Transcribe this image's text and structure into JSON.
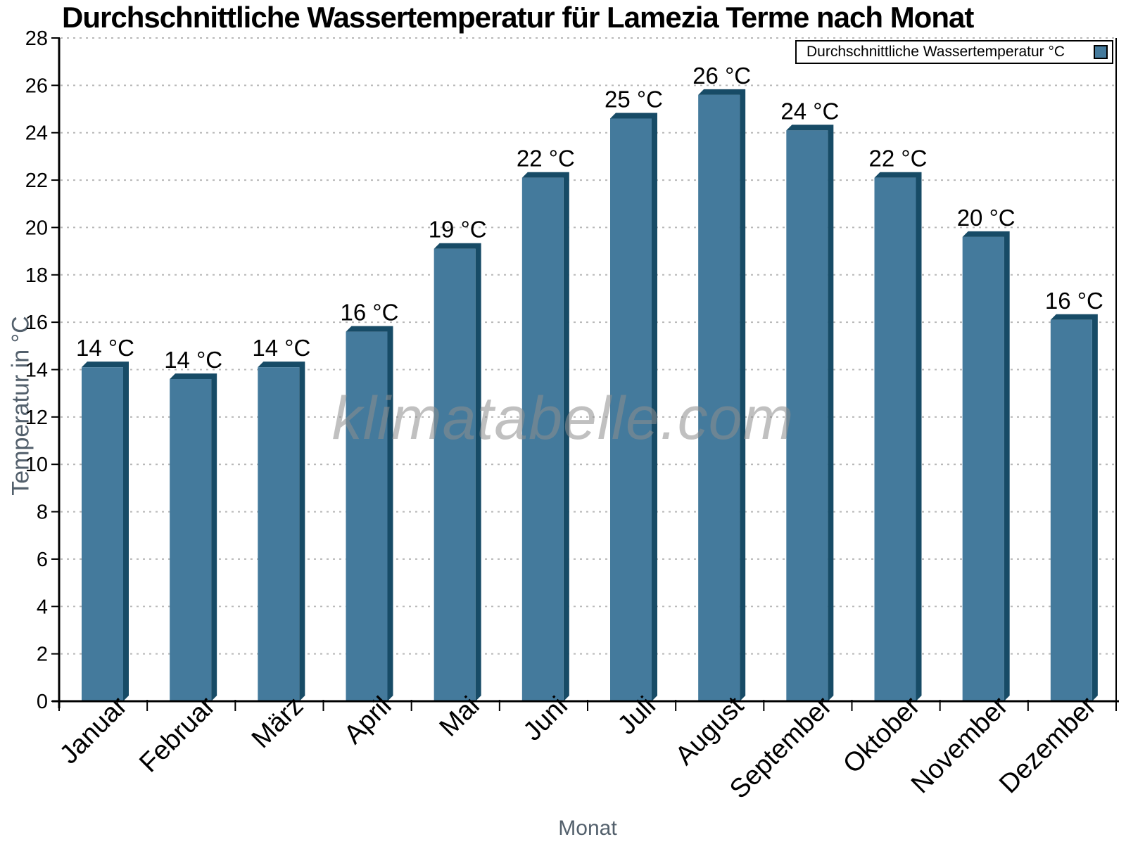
{
  "watermark": "klimatabelle.com",
  "chart_data": {
    "type": "bar",
    "title": "Durchschnittliche Wassertemperatur für Lamezia Terme nach Monat",
    "legend_label": "Durchschnittliche Wassertemperatur °C",
    "legend_position": "top-right",
    "xlabel": "Monat",
    "ylabel": "Temperatur in °C",
    "ylim": [
      0,
      28
    ],
    "ytick_step": 2,
    "grid": "horizontal-dashed",
    "categories": [
      "Januar",
      "Februar",
      "März",
      "April",
      "Mai",
      "Juni",
      "Juli",
      "August",
      "September",
      "Oktober",
      "November",
      "Dezember"
    ],
    "values": [
      14.1,
      13.6,
      14.1,
      15.6,
      19.1,
      22.1,
      24.6,
      25.6,
      24.1,
      22.1,
      19.6,
      16.1
    ],
    "bar_labels": [
      "14 °C",
      "14 °C",
      "14 °C",
      "16 °C",
      "19 °C",
      "22 °C",
      "25 °C",
      "26 °C",
      "24 °C",
      "22 °C",
      "20 °C",
      "16 °C"
    ],
    "colors": {
      "bar_face": "#447a9c",
      "bar_shade": "#174b66",
      "grid": "#b8b8b8",
      "axis": "#000000",
      "axis_title": "#53606c",
      "watermark": "#8e8e8e"
    }
  }
}
